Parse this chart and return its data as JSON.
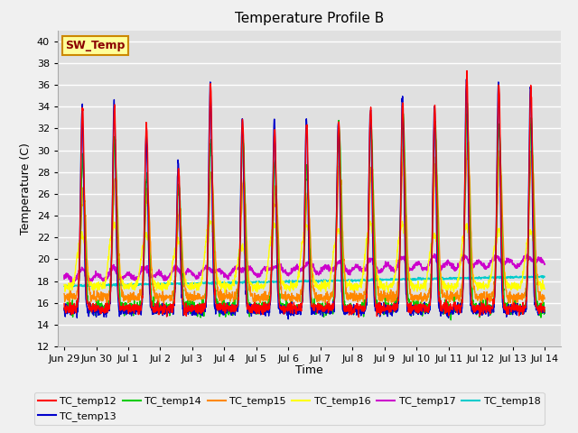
{
  "title": "Temperature Profile B",
  "xlabel": "Time",
  "ylabel": "Temperature (C)",
  "ylim": [
    12,
    41
  ],
  "yticks": [
    12,
    14,
    16,
    18,
    20,
    22,
    24,
    26,
    28,
    30,
    32,
    34,
    36,
    38,
    40
  ],
  "x_tick_labels": [
    "Jun 29",
    "Jun 30",
    "Jul 1",
    "Jul 2",
    "Jul 3",
    "Jul 4",
    "Jul 5",
    "Jul 6",
    "Jul 7",
    "Jul 8",
    "Jul 9",
    "Jul 10",
    "Jul 11",
    "Jul 12",
    "Jul 13",
    "Jul 14"
  ],
  "x_tick_positions": [
    0,
    1,
    2,
    3,
    4,
    5,
    6,
    7,
    8,
    9,
    10,
    11,
    12,
    13,
    14,
    15
  ],
  "series_colors": {
    "TC_temp12": "#ff0000",
    "TC_temp13": "#0000cc",
    "TC_temp14": "#00cc00",
    "TC_temp15": "#ff8800",
    "TC_temp16": "#ffff00",
    "TC_temp17": "#cc00cc",
    "TC_temp18": "#00cccc"
  },
  "legend_label": "SW_Temp",
  "legend_box_facecolor": "#ffff99",
  "legend_box_edgecolor": "#cc8800",
  "plot_bg": "#e0e0e0",
  "fig_bg": "#f0f0f0",
  "grid_color": "#ffffff",
  "title_fontsize": 11,
  "axis_label_fontsize": 9,
  "tick_fontsize": 8,
  "legend_fontsize": 8,
  "n_days": 15,
  "pts_per_day": 120,
  "xlim": [
    -0.2,
    15.5
  ]
}
